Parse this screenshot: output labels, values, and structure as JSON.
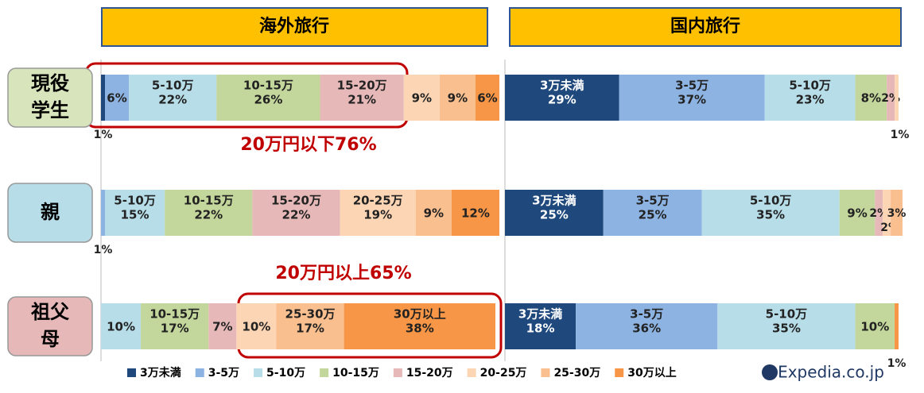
{
  "chart_data": {
    "type": "bar",
    "orientation": "horizontal",
    "stacked": true,
    "categories": [
      "現役学生",
      "親",
      "祖父母"
    ],
    "category_colors": [
      "#d8e4bc",
      "#b7dde8",
      "#e6b9b8"
    ],
    "series": [
      {
        "name": "3万未満",
        "color": "#1f497d"
      },
      {
        "name": "3-5万",
        "color": "#8db3e2"
      },
      {
        "name": "5-10万",
        "color": "#b7dde8"
      },
      {
        "name": "10-15万",
        "color": "#c3d69b"
      },
      {
        "name": "15-20万",
        "color": "#e6b9b8"
      },
      {
        "name": "20-25万",
        "color": "#fcd5b4"
      },
      {
        "name": "25-30万",
        "color": "#fabf8f"
      },
      {
        "name": "30万以上",
        "color": "#f79646"
      }
    ],
    "panels": [
      {
        "title": "海外旅行",
        "xlim": [
          0,
          100
        ],
        "rows": [
          {
            "values": [
              1,
              6,
              22,
              26,
              21,
              9,
              9,
              6
            ],
            "value_labels": [
              "1%",
              "6%",
              "22%",
              "26%",
              "21%",
              "9%",
              "9%",
              "6%"
            ],
            "segment_labels": [
              null,
              null,
              "5-10万",
              "10-15万",
              "15-20万",
              null,
              null,
              null
            ]
          },
          {
            "values": [
              0,
              1,
              15,
              22,
              22,
              19,
              9,
              12
            ],
            "value_labels": [
              null,
              "1%",
              "15%",
              "22%",
              "22%",
              "19%",
              "9%",
              "12%"
            ],
            "segment_labels": [
              null,
              null,
              "5-10万",
              "10-15万",
              "15-20万",
              "20-25万",
              null,
              null
            ]
          },
          {
            "values": [
              0,
              0,
              10,
              17,
              7,
              10,
              17,
              38
            ],
            "value_labels": [
              null,
              null,
              "10%",
              "17%",
              "7%",
              "10%",
              "17%",
              "38%"
            ],
            "segment_labels": [
              null,
              null,
              null,
              "10-15万",
              null,
              null,
              "25-30万",
              "30万以上"
            ]
          }
        ]
      },
      {
        "title": "国内旅行",
        "xlim": [
          0,
          100
        ],
        "rows": [
          {
            "values": [
              29,
              37,
              23,
              8,
              2,
              1,
              0,
              0
            ],
            "value_labels": [
              "29%",
              "37%",
              "23%",
              "8%",
              "2%",
              "1%",
              null,
              null
            ],
            "segment_labels": [
              "3万未満",
              "3-5万",
              "5-10万",
              null,
              null,
              null,
              null,
              null
            ]
          },
          {
            "values": [
              25,
              25,
              35,
              9,
              2,
              2,
              3,
              0
            ],
            "value_labels": [
              "25%",
              "25%",
              "35%",
              "9%",
              "2%",
              "2%",
              "3%",
              null
            ],
            "segment_labels": [
              "3万未満",
              "3-5万",
              "5-10万",
              null,
              null,
              null,
              null,
              null
            ]
          },
          {
            "values": [
              18,
              36,
              35,
              10,
              0,
              0,
              0,
              1
            ],
            "value_labels": [
              "18%",
              "36%",
              "35%",
              "10%",
              null,
              null,
              null,
              "1%"
            ],
            "segment_labels": [
              "3万未満",
              "3-5万",
              "5-10万",
              null,
              null,
              null,
              null,
              null
            ]
          }
        ]
      }
    ],
    "annotations": [
      "20万円以下76%",
      "20万円以上65%"
    ],
    "logo": "Expedia.co.jp"
  }
}
